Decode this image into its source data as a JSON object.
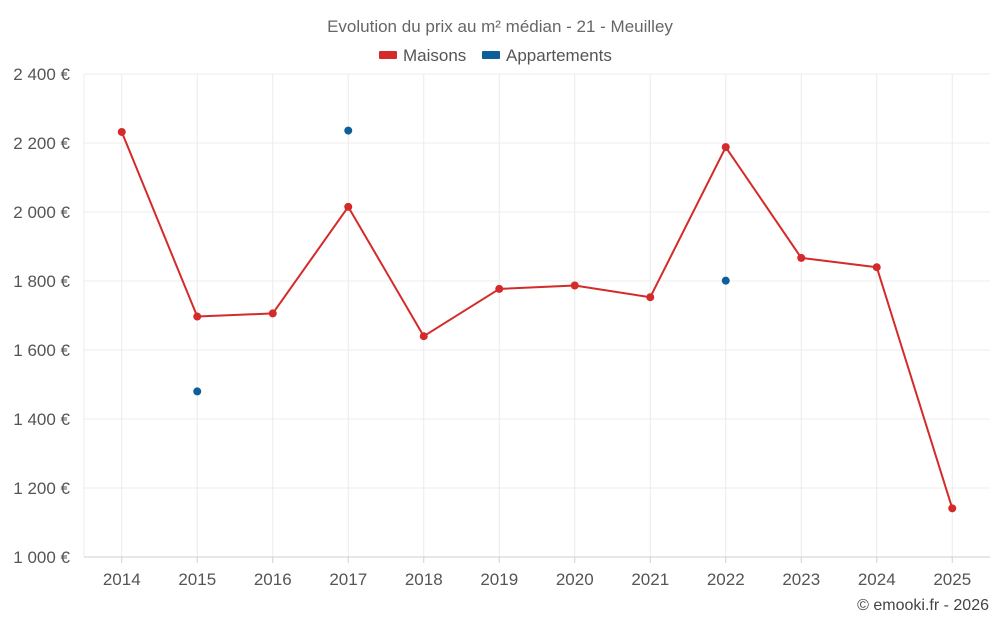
{
  "chart_data": {
    "type": "line",
    "title": "Evolution du prix au m² médian - 21 - Meuilley",
    "categories": [
      "2014",
      "2015",
      "2016",
      "2017",
      "2018",
      "2019",
      "2020",
      "2021",
      "2022",
      "2023",
      "2024",
      "2025"
    ],
    "series": [
      {
        "name": "Maisons",
        "color": "#d42a2a",
        "style": "line",
        "values": [
          2232,
          1697,
          1706,
          2015,
          1640,
          1777,
          1787,
          1753,
          2188,
          1867,
          1840,
          1141
        ]
      },
      {
        "name": "Appartements",
        "color": "#0c5f98",
        "style": "points",
        "values": [
          null,
          1480,
          null,
          2236,
          null,
          null,
          null,
          null,
          1801,
          null,
          null,
          null
        ]
      }
    ],
    "ylim": [
      1000,
      2400
    ],
    "yticks": [
      1000,
      1200,
      1400,
      1600,
      1800,
      2000,
      2200,
      2400
    ],
    "ytick_labels": [
      "1 000 €",
      "1 200 €",
      "1 400 €",
      "1 600 €",
      "1 800 €",
      "2 000 €",
      "2 200 €",
      "2 400 €"
    ],
    "xlabel": "",
    "ylabel": "",
    "legend_position": "top-center",
    "grid": true
  },
  "credit": "© emooki.fr - 2026"
}
